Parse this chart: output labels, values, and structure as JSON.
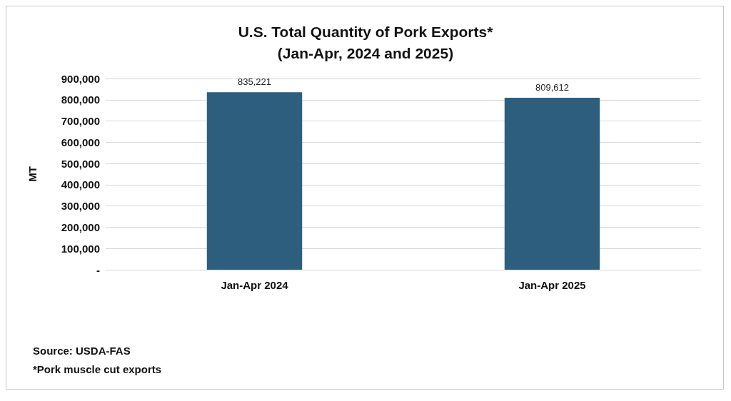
{
  "chart_data": {
    "type": "bar",
    "title": "U.S. Total Quantity of Pork Exports*\n(Jan-Apr, 2024 and 2025)",
    "ylabel": "MT",
    "categories": [
      "Jan-Apr 2024",
      "Jan-Apr 2025"
    ],
    "values": [
      835221,
      809612
    ],
    "color": "#2e5e7e",
    "value_labels": [
      "835,221",
      "809,612"
    ],
    "ylim": [
      0,
      900000
    ],
    "yticks": [
      {
        "value": 0,
        "label": "-"
      },
      {
        "value": 100000,
        "label": "100,000"
      },
      {
        "value": 200000,
        "label": "200,000"
      },
      {
        "value": 300000,
        "label": "300,000"
      },
      {
        "value": 400000,
        "label": "400,000"
      },
      {
        "value": 500000,
        "label": "500,000"
      },
      {
        "value": 600000,
        "label": "600,000"
      },
      {
        "value": 700000,
        "label": "700,000"
      },
      {
        "value": 800000,
        "label": "800,000"
      },
      {
        "value": 900000,
        "label": "900,000"
      }
    ],
    "grid": "y",
    "annotations": [
      "Source: USDA-FAS",
      "*Pork muscle cut exports"
    ]
  }
}
